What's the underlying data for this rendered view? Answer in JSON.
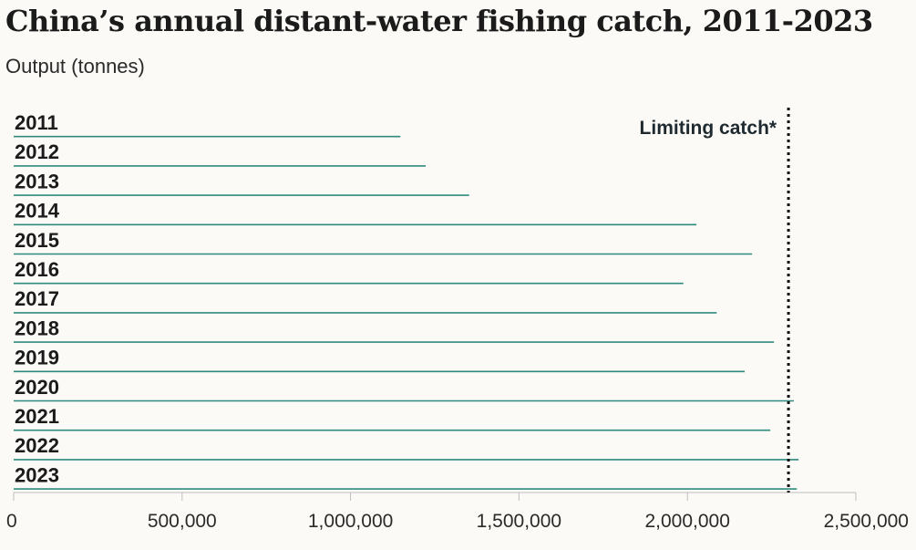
{
  "chart_data": {
    "type": "bar",
    "orientation": "horizontal",
    "title": "China’s annual distant-water fishing catch, 2011-2023",
    "subtitle": "Output (tonnes)",
    "categories": [
      "2011",
      "2012",
      "2013",
      "2014",
      "2015",
      "2016",
      "2017",
      "2018",
      "2019",
      "2020",
      "2021",
      "2022",
      "2023"
    ],
    "values": [
      1148000,
      1223000,
      1352000,
      2027000,
      2192000,
      1988000,
      2087000,
      2257000,
      2170000,
      2316000,
      2246000,
      2330000,
      2325000
    ],
    "xlim": [
      0,
      2500000
    ],
    "x_ticks": [
      "0",
      "500,000",
      "1,000,000",
      "1,500,000",
      "2,000,000",
      "2,500,000"
    ],
    "x_tick_values": [
      0,
      500000,
      1000000,
      1500000,
      2000000,
      2500000
    ],
    "reference_line": {
      "value": 2300000,
      "label": "Limiting catch*",
      "style": "dotted"
    },
    "bar_color": "#2e8a7e",
    "reference_color": "#111111",
    "grid": false
  }
}
